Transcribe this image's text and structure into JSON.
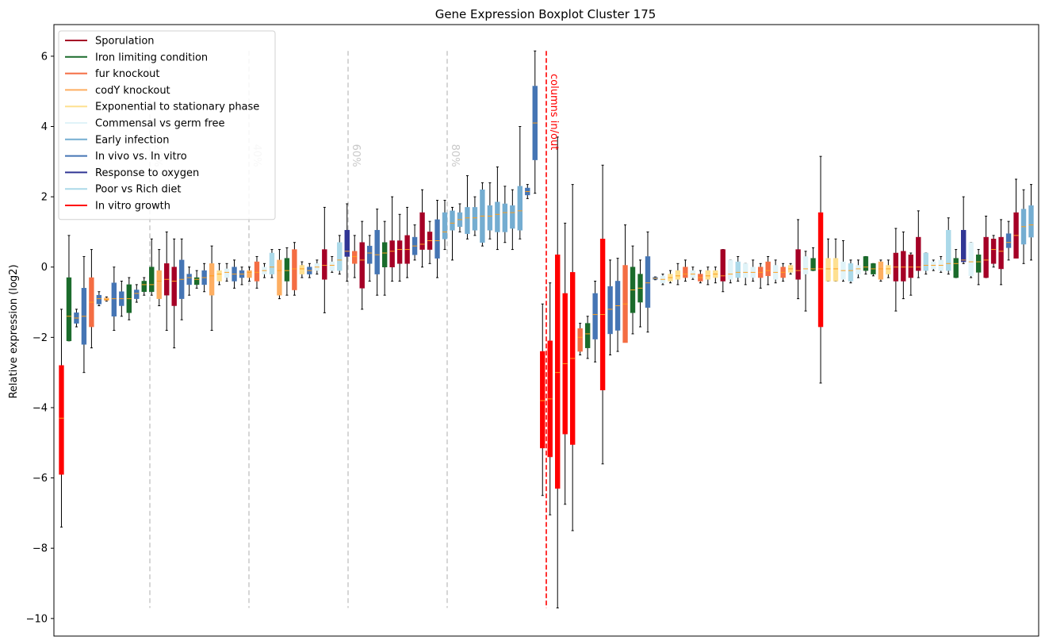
{
  "chart_data": {
    "type": "boxplot",
    "title": "Gene Expression Boxplot Cluster 175",
    "ylabel": "Relative expression (log2)",
    "xlabel": "",
    "ylim": [
      -10.5,
      6.9
    ],
    "yticks": [
      -10,
      -8,
      -6,
      -4,
      -2,
      0,
      2,
      4,
      6
    ],
    "grid": false,
    "legend_position": "top-left",
    "series": [
      {
        "name": "Sporulation",
        "color": "#a50026"
      },
      {
        "name": "Iron limiting condition",
        "color": "#1a6b2b"
      },
      {
        "name": "fur knockout",
        "color": "#f46d43"
      },
      {
        "name": "codY knockout",
        "color": "#fdae61"
      },
      {
        "name": "Exponential to stationary phase",
        "color": "#fee090"
      },
      {
        "name": "Commensal vs germ free",
        "color": "#e0f3f8"
      },
      {
        "name": "Early infection",
        "color": "#74add1"
      },
      {
        "name": "In vivo vs. In vitro",
        "color": "#4575b4"
      },
      {
        "name": "Response to oxygen",
        "color": "#313695"
      },
      {
        "name": "Poor vs Rich diet",
        "color": "#abd9e9"
      },
      {
        "name": "In vitro growth",
        "color": "#ff0000"
      }
    ],
    "percentile_markers": [
      {
        "label": "20%",
        "position": 0.2
      },
      {
        "label": "40%",
        "position": 0.4
      },
      {
        "label": "60%",
        "position": 0.6
      },
      {
        "label": "80%",
        "position": 0.8
      }
    ],
    "cut_marker": {
      "label": "columns in/out",
      "position": 86.5,
      "color": "#ff0000"
    },
    "boxes": [
      {
        "g": 10,
        "wl": -7.4,
        "q1": -5.9,
        "med": -4.3,
        "q3": -2.8,
        "wh": -1.2
      },
      {
        "g": 1,
        "wl": -2.1,
        "q1": -2.1,
        "med": -1.4,
        "q3": -0.3,
        "wh": 0.9
      },
      {
        "g": 7,
        "wl": -1.7,
        "q1": -1.6,
        "med": -1.45,
        "q3": -1.3,
        "wh": -1.2
      },
      {
        "g": 7,
        "wl": -3.0,
        "q1": -2.2,
        "med": -1.4,
        "q3": -0.6,
        "wh": 0.3
      },
      {
        "g": 2,
        "wl": -2.3,
        "q1": -1.7,
        "med": -1.0,
        "q3": -0.3,
        "wh": 0.5
      },
      {
        "g": 7,
        "wl": -1.1,
        "q1": -1.05,
        "med": -0.9,
        "q3": -0.8,
        "wh": -0.7
      },
      {
        "g": 3,
        "wl": -0.97,
        "q1": -0.95,
        "med": -0.92,
        "q3": -0.88,
        "wh": -0.85
      },
      {
        "g": 7,
        "wl": -1.8,
        "q1": -1.4,
        "med": -0.9,
        "q3": -0.45,
        "wh": 0.0
      },
      {
        "g": 7,
        "wl": -1.4,
        "q1": -1.1,
        "med": -0.9,
        "q3": -0.7,
        "wh": -0.4
      },
      {
        "g": 1,
        "wl": -1.5,
        "q1": -1.3,
        "med": -0.9,
        "q3": -0.5,
        "wh": -0.3
      },
      {
        "g": 7,
        "wl": -1.0,
        "q1": -0.9,
        "med": -0.75,
        "q3": -0.65,
        "wh": -0.5
      },
      {
        "g": 1,
        "wl": -0.8,
        "q1": -0.7,
        "med": -0.5,
        "q3": -0.4,
        "wh": -0.3
      },
      {
        "g": 1,
        "wl": -0.8,
        "q1": -0.7,
        "med": -0.5,
        "q3": 0.0,
        "wh": 0.8
      },
      {
        "g": 3,
        "wl": -1.1,
        "q1": -0.9,
        "med": -0.4,
        "q3": -0.1,
        "wh": 0.5
      },
      {
        "g": 0,
        "wl": -1.8,
        "q1": -0.8,
        "med": -0.35,
        "q3": 0.1,
        "wh": 1.0
      },
      {
        "g": 0,
        "wl": -2.3,
        "q1": -1.1,
        "med": -0.4,
        "q3": 0.0,
        "wh": 0.8
      },
      {
        "g": 7,
        "wl": -1.5,
        "q1": -0.9,
        "med": -0.35,
        "q3": 0.2,
        "wh": 0.8
      },
      {
        "g": 7,
        "wl": -0.8,
        "q1": -0.5,
        "med": -0.3,
        "q3": -0.2,
        "wh": 0.0
      },
      {
        "g": 1,
        "wl": -0.6,
        "q1": -0.5,
        "med": -0.35,
        "q3": -0.3,
        "wh": -0.1
      },
      {
        "g": 7,
        "wl": -0.7,
        "q1": -0.5,
        "med": -0.3,
        "q3": -0.1,
        "wh": 0.1
      },
      {
        "g": 3,
        "wl": -1.8,
        "q1": -0.8,
        "med": -0.25,
        "q3": 0.1,
        "wh": 0.6
      },
      {
        "g": 4,
        "wl": -0.5,
        "q1": -0.4,
        "med": -0.2,
        "q3": -0.1,
        "wh": 0.1
      },
      {
        "g": 5,
        "wl": -0.4,
        "q1": -0.3,
        "med": -0.15,
        "q3": -0.05,
        "wh": 0.1
      },
      {
        "g": 7,
        "wl": -0.6,
        "q1": -0.4,
        "med": -0.2,
        "q3": 0.0,
        "wh": 0.2
      },
      {
        "g": 7,
        "wl": -0.5,
        "q1": -0.3,
        "med": -0.2,
        "q3": -0.1,
        "wh": 0.0
      },
      {
        "g": 3,
        "wl": -0.4,
        "q1": -0.3,
        "med": -0.15,
        "q3": -0.1,
        "wh": 0.0
      },
      {
        "g": 2,
        "wl": -0.6,
        "q1": -0.4,
        "med": -0.15,
        "q3": 0.15,
        "wh": 0.3
      },
      {
        "g": 5,
        "wl": -0.3,
        "q1": -0.2,
        "med": -0.1,
        "q3": 0.0,
        "wh": 0.1
      },
      {
        "g": 9,
        "wl": -0.3,
        "q1": -0.2,
        "med": 0.0,
        "q3": 0.4,
        "wh": 0.5
      },
      {
        "g": 3,
        "wl": -0.9,
        "q1": -0.8,
        "med": -0.1,
        "q3": 0.2,
        "wh": 0.5
      },
      {
        "g": 1,
        "wl": -0.8,
        "q1": -0.4,
        "med": -0.1,
        "q3": 0.25,
        "wh": 0.55
      },
      {
        "g": 2,
        "wl": -0.8,
        "q1": -0.65,
        "med": -0.05,
        "q3": 0.5,
        "wh": 0.7
      },
      {
        "g": 4,
        "wl": -0.3,
        "q1": -0.2,
        "med": -0.05,
        "q3": 0.05,
        "wh": 0.15
      },
      {
        "g": 7,
        "wl": -0.3,
        "q1": -0.2,
        "med": -0.1,
        "q3": 0.0,
        "wh": 0.1
      },
      {
        "g": 5,
        "wl": -0.2,
        "q1": -0.1,
        "med": 0.0,
        "q3": 0.1,
        "wh": 0.2
      },
      {
        "g": 0,
        "wl": -1.3,
        "q1": -0.35,
        "med": 0.05,
        "q3": 0.5,
        "wh": 1.7
      },
      {
        "g": 5,
        "wl": -0.15,
        "q1": -0.1,
        "med": 0.05,
        "q3": 0.15,
        "wh": 0.3
      },
      {
        "g": 9,
        "wl": -0.2,
        "q1": -0.1,
        "med": 0.2,
        "q3": 0.7,
        "wh": 0.9
      },
      {
        "g": 8,
        "wl": -0.4,
        "q1": 0.3,
        "med": 0.45,
        "q3": 1.05,
        "wh": 1.8
      },
      {
        "g": 2,
        "wl": -0.3,
        "q1": 0.1,
        "med": 0.3,
        "q3": 0.45,
        "wh": 0.9
      },
      {
        "g": 0,
        "wl": -1.2,
        "q1": -0.6,
        "med": 0.2,
        "q3": 0.7,
        "wh": 1.3
      },
      {
        "g": 7,
        "wl": -0.4,
        "q1": 0.1,
        "med": 0.4,
        "q3": 0.6,
        "wh": 0.9
      },
      {
        "g": 7,
        "wl": -0.8,
        "q1": -0.2,
        "med": 0.35,
        "q3": 1.05,
        "wh": 1.65
      },
      {
        "g": 1,
        "wl": -0.8,
        "q1": 0.0,
        "med": 0.4,
        "q3": 0.7,
        "wh": 1.3
      },
      {
        "g": 0,
        "wl": -0.4,
        "q1": 0.0,
        "med": 0.45,
        "q3": 0.75,
        "wh": 2.0
      },
      {
        "g": 0,
        "wl": -0.4,
        "q1": 0.1,
        "med": 0.5,
        "q3": 0.75,
        "wh": 1.5
      },
      {
        "g": 0,
        "wl": -0.3,
        "q1": 0.1,
        "med": 0.5,
        "q3": 0.9,
        "wh": 1.7
      },
      {
        "g": 7,
        "wl": 0.2,
        "q1": 0.35,
        "med": 0.6,
        "q3": 0.85,
        "wh": 1.2
      },
      {
        "g": 0,
        "wl": 0.0,
        "q1": 0.5,
        "med": 0.65,
        "q3": 1.55,
        "wh": 2.2
      },
      {
        "g": 0,
        "wl": 0.1,
        "q1": 0.5,
        "med": 0.75,
        "q3": 1.0,
        "wh": 1.3
      },
      {
        "g": 7,
        "wl": -0.3,
        "q1": 0.25,
        "med": 0.75,
        "q3": 1.35,
        "wh": 1.9
      },
      {
        "g": 6,
        "wl": 0.5,
        "q1": 0.8,
        "med": 1.0,
        "q3": 1.55,
        "wh": 1.9
      },
      {
        "g": 6,
        "wl": 0.2,
        "q1": 1.05,
        "med": 1.25,
        "q3": 1.6,
        "wh": 1.7
      },
      {
        "g": 6,
        "wl": 1.0,
        "q1": 1.15,
        "med": 1.35,
        "q3": 1.55,
        "wh": 1.8
      },
      {
        "g": 6,
        "wl": 0.8,
        "q1": 0.95,
        "med": 1.4,
        "q3": 1.7,
        "wh": 2.6
      },
      {
        "g": 6,
        "wl": 0.9,
        "q1": 1.05,
        "med": 1.4,
        "q3": 1.7,
        "wh": 2.0
      },
      {
        "g": 6,
        "wl": 0.6,
        "q1": 0.7,
        "med": 1.45,
        "q3": 2.2,
        "wh": 2.4
      },
      {
        "g": 6,
        "wl": 0.8,
        "q1": 1.05,
        "med": 1.45,
        "q3": 1.75,
        "wh": 2.4
      },
      {
        "g": 6,
        "wl": 0.5,
        "q1": 1.0,
        "med": 1.5,
        "q3": 1.85,
        "wh": 2.85
      },
      {
        "g": 6,
        "wl": 0.7,
        "q1": 1.0,
        "med": 1.55,
        "q3": 1.8,
        "wh": 2.3
      },
      {
        "g": 6,
        "wl": 0.5,
        "q1": 1.1,
        "med": 1.55,
        "q3": 1.75,
        "wh": 2.2
      },
      {
        "g": 6,
        "wl": 0.8,
        "q1": 1.05,
        "med": 1.6,
        "q3": 2.3,
        "wh": 4.0
      },
      {
        "g": 7,
        "wl": 1.95,
        "q1": 2.05,
        "med": 2.15,
        "q3": 2.25,
        "wh": 2.35
      },
      {
        "g": 7,
        "wl": 2.1,
        "q1": 3.05,
        "med": 4.1,
        "q3": 5.15,
        "wh": 6.15
      },
      {
        "g": 10,
        "wl": -6.5,
        "q1": -5.15,
        "med": -3.8,
        "q3": -2.4,
        "wh": -1.05
      },
      {
        "g": 10,
        "wl": -7.05,
        "q1": -5.4,
        "med": -3.75,
        "q3": -2.1,
        "wh": -0.45
      },
      {
        "g": 10,
        "wl": -9.7,
        "q1": -6.3,
        "med": -3.0,
        "q3": 0.35,
        "wh": 3.7
      },
      {
        "g": 10,
        "wl": -6.75,
        "q1": -4.75,
        "med": -2.75,
        "q3": -0.75,
        "wh": 1.25
      },
      {
        "g": 10,
        "wl": -7.5,
        "q1": -5.05,
        "med": -2.6,
        "q3": -0.15,
        "wh": 2.35
      },
      {
        "g": 2,
        "wl": -2.5,
        "q1": -2.4,
        "med": -2.0,
        "q3": -1.75,
        "wh": -1.6
      },
      {
        "g": 1,
        "wl": -2.6,
        "q1": -2.3,
        "med": -1.9,
        "q3": -1.6,
        "wh": -1.4
      },
      {
        "g": 7,
        "wl": -2.7,
        "q1": -2.05,
        "med": -1.35,
        "q3": -0.75,
        "wh": -0.4
      },
      {
        "g": 10,
        "wl": -5.6,
        "q1": -3.5,
        "med": -1.35,
        "q3": 0.8,
        "wh": 2.9
      },
      {
        "g": 7,
        "wl": -2.5,
        "q1": -1.9,
        "med": -1.2,
        "q3": -0.55,
        "wh": 0.2
      },
      {
        "g": 7,
        "wl": -2.4,
        "q1": -1.8,
        "med": -1.1,
        "q3": -0.4,
        "wh": 0.25
      },
      {
        "g": 2,
        "wl": -2.1,
        "q1": -2.15,
        "med": -1.05,
        "q3": 0.05,
        "wh": 1.2
      },
      {
        "g": 1,
        "wl": -1.9,
        "q1": -1.3,
        "med": -0.65,
        "q3": 0.0,
        "wh": 0.6
      },
      {
        "g": 1,
        "wl": -1.7,
        "q1": -1.0,
        "med": -0.6,
        "q3": -0.2,
        "wh": 0.2
      },
      {
        "g": 7,
        "wl": -1.85,
        "q1": -1.15,
        "med": -0.45,
        "q3": 0.3,
        "wh": 1.0
      },
      {
        "g": 7,
        "wl": -0.36,
        "q1": -0.35,
        "med": -0.32,
        "q3": -0.29,
        "wh": -0.28
      },
      {
        "g": 5,
        "wl": -0.5,
        "q1": -0.45,
        "med": -0.35,
        "q3": -0.25,
        "wh": -0.2
      },
      {
        "g": 4,
        "wl": -0.45,
        "q1": -0.4,
        "med": -0.3,
        "q3": -0.2,
        "wh": -0.1
      },
      {
        "g": 4,
        "wl": -0.5,
        "q1": -0.35,
        "med": -0.25,
        "q3": -0.1,
        "wh": 0.1
      },
      {
        "g": 2,
        "wl": -0.4,
        "q1": -0.3,
        "med": -0.2,
        "q3": 0.0,
        "wh": 0.2
      },
      {
        "g": 5,
        "wl": -0.35,
        "q1": -0.3,
        "med": -0.2,
        "q3": -0.1,
        "wh": 0.0
      },
      {
        "g": 2,
        "wl": -0.45,
        "q1": -0.4,
        "med": -0.3,
        "q3": -0.2,
        "wh": -0.1
      },
      {
        "g": 4,
        "wl": -0.5,
        "q1": -0.35,
        "med": -0.25,
        "q3": -0.1,
        "wh": 0.0
      },
      {
        "g": 4,
        "wl": -0.45,
        "q1": -0.3,
        "med": -0.2,
        "q3": -0.1,
        "wh": 0.0
      },
      {
        "g": 0,
        "wl": -0.7,
        "q1": -0.4,
        "med": -0.25,
        "q3": 0.5,
        "wh": 0.5
      },
      {
        "g": 5,
        "wl": -0.45,
        "q1": -0.35,
        "med": -0.2,
        "q3": 0.2,
        "wh": 0.2
      },
      {
        "g": 9,
        "wl": -0.4,
        "q1": -0.3,
        "med": -0.15,
        "q3": 0.15,
        "wh": 0.3
      },
      {
        "g": 5,
        "wl": -0.5,
        "q1": -0.3,
        "med": -0.15,
        "q3": 0.1,
        "wh": 0.1
      },
      {
        "g": 5,
        "wl": -0.4,
        "q1": -0.3,
        "med": -0.15,
        "q3": 0.0,
        "wh": 0.2
      },
      {
        "g": 2,
        "wl": -0.6,
        "q1": -0.3,
        "med": -0.15,
        "q3": 0.0,
        "wh": 0.1
      },
      {
        "g": 2,
        "wl": -0.5,
        "q1": -0.25,
        "med": -0.1,
        "q3": 0.15,
        "wh": 0.3
      },
      {
        "g": 5,
        "wl": -0.45,
        "q1": -0.35,
        "med": -0.15,
        "q3": 0.05,
        "wh": 0.2
      },
      {
        "g": 2,
        "wl": -0.4,
        "q1": -0.3,
        "med": -0.15,
        "q3": 0.0,
        "wh": 0.1
      },
      {
        "g": 4,
        "wl": -0.2,
        "q1": -0.15,
        "med": -0.05,
        "q3": 0.05,
        "wh": 0.1
      },
      {
        "g": 0,
        "wl": -0.9,
        "q1": -0.35,
        "med": -0.1,
        "q3": 0.5,
        "wh": 1.35
      },
      {
        "g": 5,
        "wl": -1.25,
        "q1": -0.2,
        "med": -0.05,
        "q3": 0.3,
        "wh": 0.45
      },
      {
        "g": 1,
        "wl": -0.1,
        "q1": -0.1,
        "med": -0.05,
        "q3": 0.25,
        "wh": 0.55
      },
      {
        "g": 10,
        "wl": -3.3,
        "q1": -1.7,
        "med": -0.05,
        "q3": 1.55,
        "wh": 3.15
      },
      {
        "g": 4,
        "wl": -0.4,
        "q1": -0.4,
        "med": -0.05,
        "q3": 0.25,
        "wh": 0.8
      },
      {
        "g": 4,
        "wl": -0.4,
        "q1": -0.4,
        "med": -0.05,
        "q3": 0.25,
        "wh": 0.8
      },
      {
        "g": 5,
        "wl": -0.4,
        "q1": -0.35,
        "med": -0.1,
        "q3": 0.15,
        "wh": 0.75
      },
      {
        "g": 9,
        "wl": -0.45,
        "q1": -0.4,
        "med": -0.1,
        "q3": 0.1,
        "wh": 0.2
      },
      {
        "g": 5,
        "wl": -0.3,
        "q1": -0.2,
        "med": -0.05,
        "q3": 0.05,
        "wh": 0.2
      },
      {
        "g": 1,
        "wl": -0.2,
        "q1": -0.1,
        "med": 0.0,
        "q3": 0.3,
        "wh": 0.3
      },
      {
        "g": 1,
        "wl": -0.25,
        "q1": -0.2,
        "med": -0.05,
        "q3": 0.1,
        "wh": 0.1
      },
      {
        "g": 3,
        "wl": -0.4,
        "q1": -0.35,
        "med": -0.05,
        "q3": 0.15,
        "wh": 0.2
      },
      {
        "g": 4,
        "wl": -0.3,
        "q1": -0.2,
        "med": -0.05,
        "q3": 0.05,
        "wh": 0.2
      },
      {
        "g": 0,
        "wl": -1.25,
        "q1": -0.4,
        "med": 0.0,
        "q3": 0.4,
        "wh": 1.1
      },
      {
        "g": 0,
        "wl": -0.9,
        "q1": -0.4,
        "med": 0.0,
        "q3": 0.45,
        "wh": 1.0
      },
      {
        "g": 0,
        "wl": -0.8,
        "q1": -0.3,
        "med": 0.0,
        "q3": 0.35,
        "wh": 0.4
      },
      {
        "g": 0,
        "wl": -0.3,
        "q1": -0.1,
        "med": 0.0,
        "q3": 0.85,
        "wh": 1.6
      },
      {
        "g": 9,
        "wl": -0.2,
        "q1": -0.1,
        "med": 0.05,
        "q3": 0.4,
        "wh": 0.4
      },
      {
        "g": 5,
        "wl": -0.1,
        "q1": -0.05,
        "med": 0.05,
        "q3": 0.15,
        "wh": 0.2
      },
      {
        "g": 5,
        "wl": -0.15,
        "q1": -0.1,
        "med": 0.05,
        "q3": 0.2,
        "wh": 0.3
      },
      {
        "g": 9,
        "wl": -0.2,
        "q1": -0.1,
        "med": 0.1,
        "q3": 1.05,
        "wh": 1.4
      },
      {
        "g": 1,
        "wl": -0.3,
        "q1": -0.3,
        "med": 0.1,
        "q3": 0.25,
        "wh": 0.5
      },
      {
        "g": 8,
        "wl": 0.1,
        "q1": 0.15,
        "med": 0.2,
        "q3": 1.05,
        "wh": 2.0
      },
      {
        "g": 5,
        "wl": -0.3,
        "q1": -0.25,
        "med": 0.15,
        "q3": 0.7,
        "wh": 0.7
      },
      {
        "g": 1,
        "wl": -0.5,
        "q1": -0.15,
        "med": 0.15,
        "q3": 0.35,
        "wh": 0.5
      },
      {
        "g": 0,
        "wl": -0.3,
        "q1": -0.3,
        "med": 0.2,
        "q3": 0.85,
        "wh": 1.45
      },
      {
        "g": 0,
        "wl": 0.0,
        "q1": 0.1,
        "med": 0.5,
        "q3": 0.8,
        "wh": 0.9
      },
      {
        "g": 0,
        "wl": -0.5,
        "q1": -0.05,
        "med": 0.45,
        "q3": 0.85,
        "wh": 1.35
      },
      {
        "g": 7,
        "wl": 0.2,
        "q1": 0.55,
        "med": 0.7,
        "q3": 0.95,
        "wh": 1.3
      },
      {
        "g": 0,
        "wl": 0.3,
        "q1": 0.25,
        "med": 0.9,
        "q3": 1.55,
        "wh": 2.5
      },
      {
        "g": 6,
        "wl": 0.1,
        "q1": 0.65,
        "med": 1.15,
        "q3": 1.65,
        "wh": 2.2
      },
      {
        "g": 6,
        "wl": 0.2,
        "q1": 0.85,
        "med": 1.2,
        "q3": 1.75,
        "wh": 2.35
      }
    ]
  }
}
